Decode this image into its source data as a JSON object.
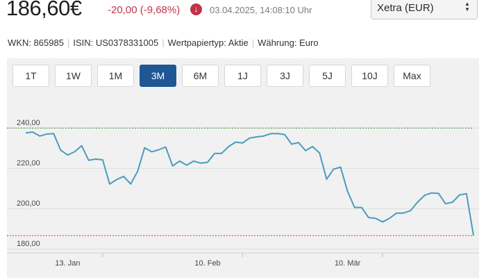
{
  "quote": {
    "price": "186,60€",
    "change": "-20,00 (-9,68%)",
    "direction_icon": "arrow-down-icon",
    "timestamp": "03.04.2025, 14:08:10 Uhr"
  },
  "exchange_select": {
    "selected": "Xetra (EUR)"
  },
  "info": {
    "wkn": "WKN: 865985",
    "isin": "ISIN: US0378331005",
    "type": "Wertpapiertyp: Aktie",
    "currency": "Währung: Euro"
  },
  "range_tabs": [
    {
      "label": "1T",
      "active": false
    },
    {
      "label": "1W",
      "active": false
    },
    {
      "label": "1M",
      "active": false
    },
    {
      "label": "3M",
      "active": true
    },
    {
      "label": "6M",
      "active": false
    },
    {
      "label": "1J",
      "active": false
    },
    {
      "label": "3J",
      "active": false
    },
    {
      "label": "5J",
      "active": false
    },
    {
      "label": "10J",
      "active": false
    },
    {
      "label": "Max",
      "active": false
    }
  ],
  "colors": {
    "line": "#4a9bbf",
    "accent": "#1f5694",
    "negative": "#c0344a",
    "high_line": "#3a8a3a",
    "low_line": "#c0344a"
  },
  "chart_data": {
    "type": "line",
    "ylim": [
      178,
      258
    ],
    "y_ticks": [
      180,
      200,
      220,
      240
    ],
    "y_tick_labels": [
      "180,00",
      "200,00",
      "220,00",
      "240,00"
    ],
    "x_tick_labels": [
      "13. Jan",
      "10. Feb",
      "10. Mär"
    ],
    "x_tick_positions": [
      6,
      26,
      46
    ],
    "x_separator_positions": [
      11,
      31,
      51
    ],
    "reference_lines": [
      {
        "value": 240,
        "color": "#3a8a3a",
        "style": "dashed"
      },
      {
        "value": 186.6,
        "color": "#c0344a",
        "style": "dashed"
      }
    ],
    "series": [
      {
        "values": [
          237.6,
          238,
          236,
          237,
          237.2,
          229,
          226.6,
          228.2,
          231.2,
          224,
          224.6,
          224.2,
          212.2,
          214.4,
          216,
          212.2,
          218.6,
          230.2,
          228.2,
          229.2,
          230.6,
          221.2,
          223.6,
          221.6,
          223.6,
          222.6,
          223,
          227.4,
          227.4,
          230.8,
          233,
          232.6,
          235,
          235.6,
          236,
          237.2,
          237.2,
          236.8,
          232,
          232.8,
          228.8,
          230.8,
          227.6,
          214.6,
          219.6,
          220.6,
          208.6,
          200.6,
          200.6,
          195.6,
          195.2,
          193.4,
          195.2,
          197.8,
          197.8,
          199,
          203.2,
          206.6,
          207.8,
          207.6,
          202.4,
          203.2,
          206.8,
          207.4,
          186.6
        ]
      }
    ]
  }
}
